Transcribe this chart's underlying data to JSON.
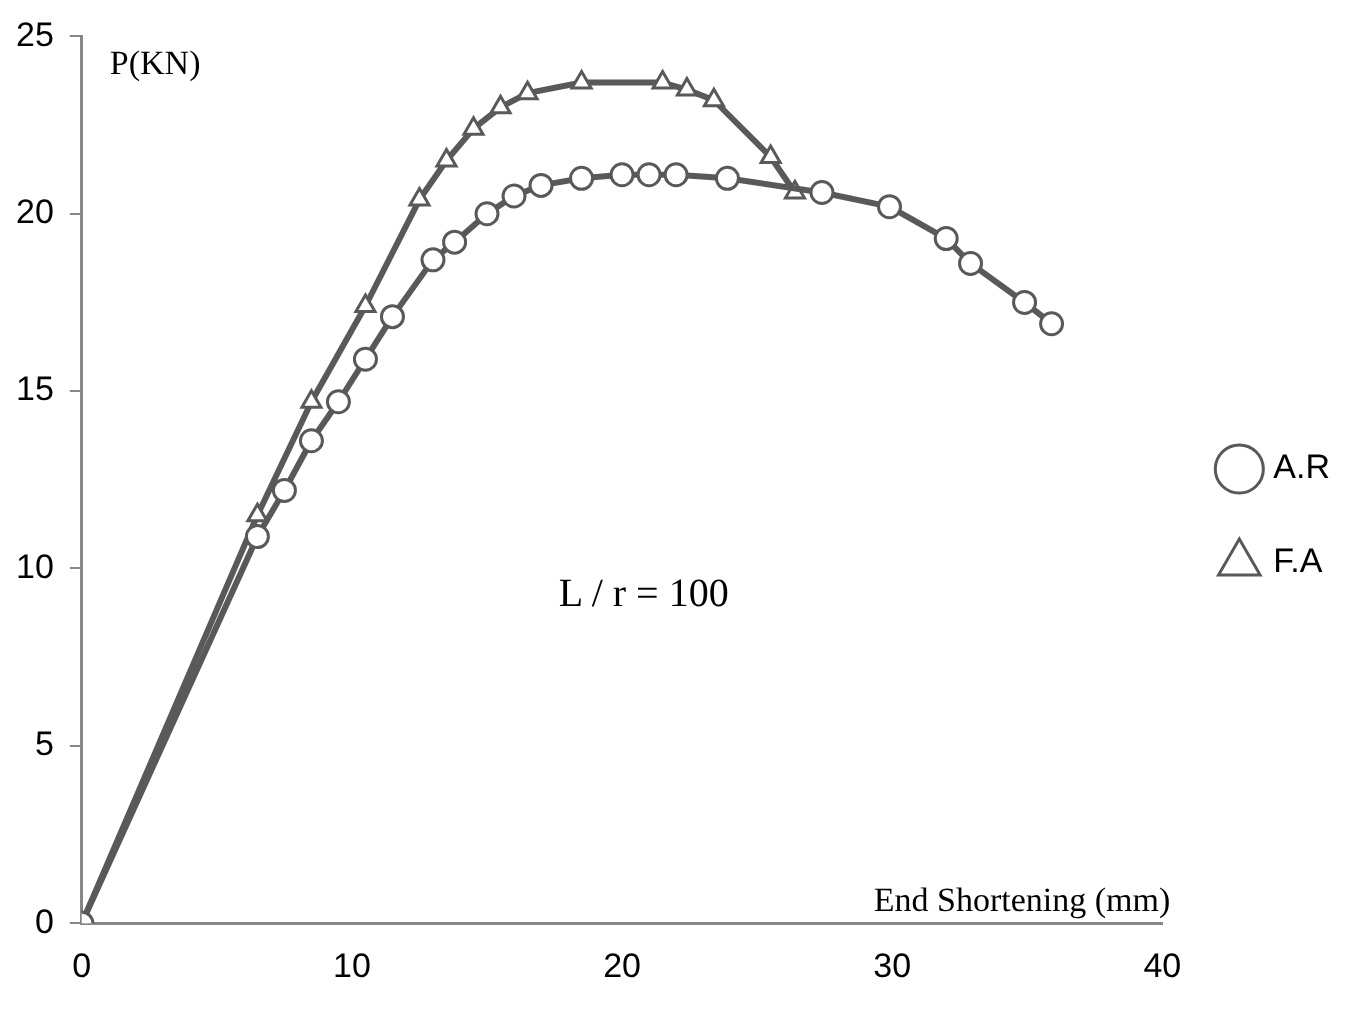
{
  "chart_data": {
    "type": "line",
    "xlabel": "End Shortening (mm)",
    "ylabel": "P(KN)",
    "annotations": [
      "L / r = 100"
    ],
    "xlim": [
      0,
      40
    ],
    "xticks": [
      0,
      10,
      20,
      30,
      40
    ],
    "ylim": [
      0,
      25
    ],
    "yticks": [
      0,
      5,
      10,
      15,
      20,
      25
    ],
    "grid": false,
    "legend": "right",
    "series": [
      {
        "name": "A.R",
        "color": "#595959",
        "marker": "circle",
        "x": [
          0,
          6.5,
          7.5,
          8.5,
          9.5,
          10.5,
          11.5,
          13,
          13.8,
          15,
          16,
          17,
          18.5,
          20,
          21,
          22,
          23.9,
          27.4,
          29.9,
          32,
          32.9,
          34.9,
          35.9
        ],
        "values": [
          0,
          10.9,
          12.2,
          13.6,
          14.7,
          15.9,
          17.1,
          18.7,
          19.2,
          20,
          20.5,
          20.8,
          21,
          21.1,
          21.1,
          21.1,
          21,
          20.6,
          20.2,
          19.3,
          18.6,
          17.5,
          16.9
        ]
      },
      {
        "name": "F.A",
        "color": "#595959",
        "marker": "triangle",
        "x": [
          0,
          6.5,
          8.5,
          10.5,
          12.5,
          13.5,
          14.5,
          15.5,
          16.5,
          18.5,
          21.5,
          22.4,
          23.4,
          25.5,
          26.4
        ],
        "values": [
          0,
          11.5,
          14.7,
          17.4,
          20.4,
          21.5,
          22.4,
          23,
          23.4,
          23.7,
          23.7,
          23.5,
          23.2,
          21.6,
          20.6
        ]
      }
    ]
  }
}
